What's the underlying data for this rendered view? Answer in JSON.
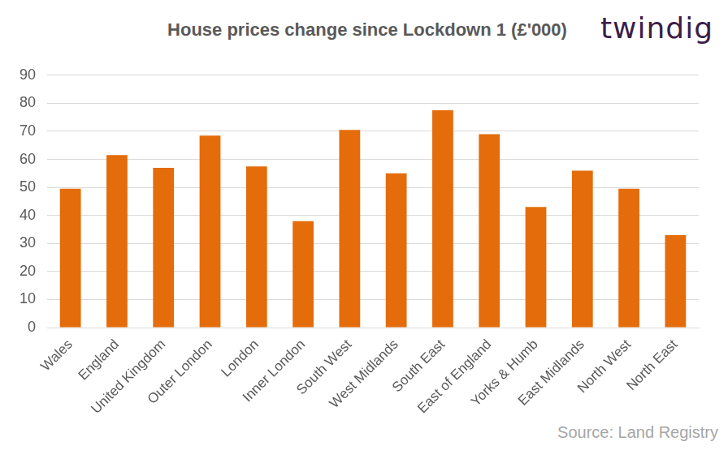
{
  "chart_data": {
    "type": "bar",
    "title": "House prices change since Lockdown 1 (£'000)",
    "logo": "twindig",
    "source": "Source: Land Registry",
    "categories": [
      "Wales",
      "England",
      "United Kingdom",
      "Outer London",
      "London",
      "Inner London",
      "South West",
      "West Midlands",
      "South East",
      "East of England",
      "Yorks & Humb",
      "East Midlands",
      "North West",
      "North East"
    ],
    "values": [
      49.5,
      61.5,
      57,
      68.5,
      57.5,
      38,
      70.5,
      55,
      77.5,
      69,
      43,
      56,
      49.5,
      33
    ],
    "color": "#e46c0a",
    "ylim": [
      0,
      90
    ],
    "yticks": [
      0,
      10,
      20,
      30,
      40,
      50,
      60,
      70,
      80,
      90
    ],
    "grid": true
  }
}
